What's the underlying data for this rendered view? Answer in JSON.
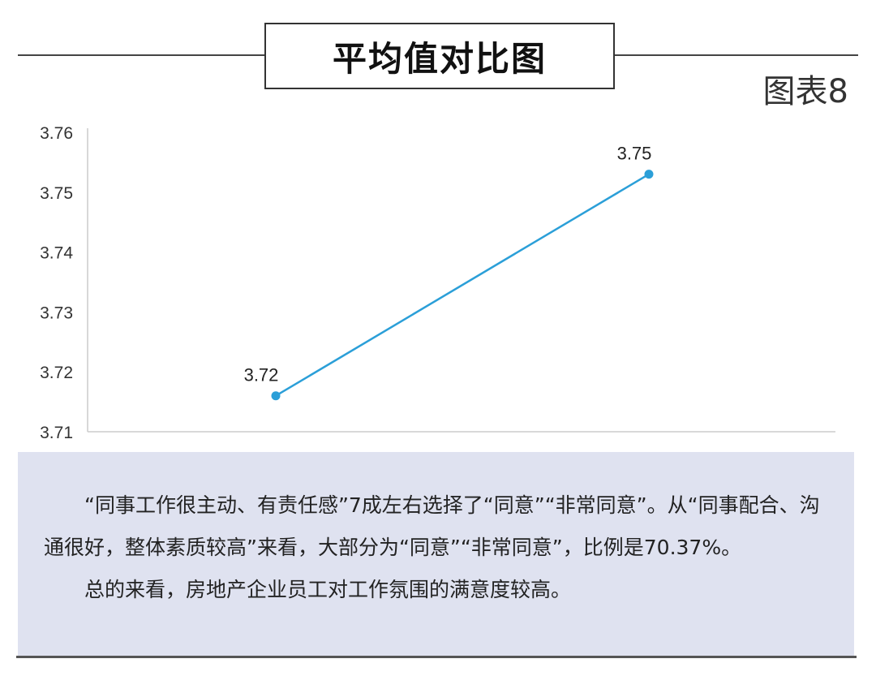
{
  "header": {
    "title": "平均值对比图",
    "figure_label": "图表8"
  },
  "chart_data": {
    "type": "line",
    "title": "平均值对比图",
    "categories": [
      "",
      ""
    ],
    "values": [
      3.716,
      3.753
    ],
    "data_labels": [
      "3.72",
      "3.75"
    ],
    "ylim": [
      3.71,
      3.76
    ],
    "yticks": [
      "3.76",
      "3.75",
      "3.74",
      "3.73",
      "3.72",
      "3.71"
    ],
    "xlabel": "",
    "ylabel": "",
    "grid": false,
    "line_color": "#2b9fd8"
  },
  "note": {
    "paragraphs": [
      "“同事工作很主动、有责任感”7成左右选择了“同意”“非常同意”。从“同事配合、沟通很好，整体素质较高”来看，大部分为“同意”“非常同意”，比例是70.37%。",
      "总的来看，房地产企业员工对工作氛围的满意度较高。"
    ]
  }
}
